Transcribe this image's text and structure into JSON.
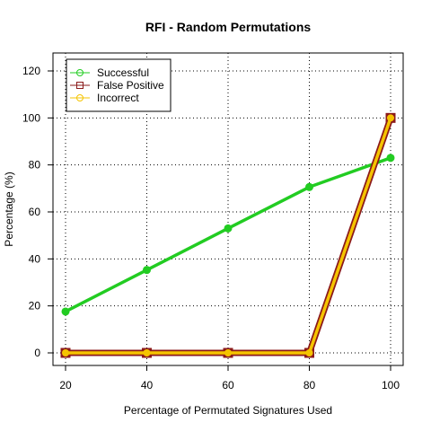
{
  "chart_data": {
    "type": "line",
    "title": "RFI - Random Permutations",
    "xlabel": "Percentage of Permutated Signatures Used",
    "ylabel": "Percentage (%)",
    "x": [
      20,
      40,
      60,
      80,
      100
    ],
    "xlim": [
      20,
      100
    ],
    "ylim": [
      0,
      120
    ],
    "x_ticks": [
      20,
      40,
      60,
      80,
      100
    ],
    "y_ticks": [
      0,
      20,
      40,
      60,
      80,
      100,
      120
    ],
    "grid": true,
    "legend_position": "top-left",
    "series": [
      {
        "name": "Successful",
        "values": [
          17.6,
          35.3,
          53.0,
          70.6,
          83.0
        ],
        "color": "#22cc22",
        "marker": "circle"
      },
      {
        "name": "False Positive",
        "values": [
          0,
          0,
          0,
          0,
          100
        ],
        "color": "#8b1a1a",
        "marker": "square"
      },
      {
        "name": "Incorrect",
        "values": [
          0,
          0,
          0,
          0,
          100
        ],
        "color": "#f5c400",
        "marker": "circle"
      }
    ]
  }
}
